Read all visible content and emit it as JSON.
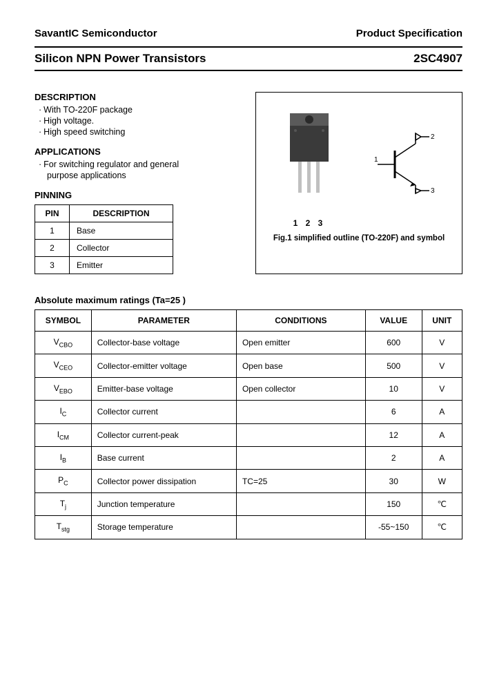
{
  "header": {
    "company": "SavantIC Semiconductor",
    "doc_type": "Product Specification"
  },
  "title": {
    "product_line": "Silicon NPN Power Transistors",
    "part_number": "2SC4907"
  },
  "description": {
    "heading": "DESCRIPTION",
    "items": [
      "With TO-220F package",
      "High voltage.",
      "High speed switching"
    ]
  },
  "applications": {
    "heading": "APPLICATIONS",
    "line1": "For switching regulator and general",
    "line2": "purpose applications"
  },
  "pinning": {
    "heading": "PINNING",
    "columns": [
      "PIN",
      "DESCRIPTION"
    ],
    "rows": [
      [
        "1",
        "Base"
      ],
      [
        "2",
        "Collector"
      ],
      [
        "3",
        "Emitter"
      ]
    ]
  },
  "figure": {
    "pin_labels": "1 2 3",
    "symbol_pins": {
      "p1": "1",
      "p2": "2",
      "p3": "3"
    },
    "caption": "Fig.1 simplified outline (TO-220F) and symbol",
    "package_color": "#5a5a5a",
    "package_dark": "#3a3a3a",
    "lead_color": "#c0c0c0"
  },
  "ratings": {
    "heading": "Absolute maximum ratings (Ta=25  )",
    "columns": [
      "SYMBOL",
      "PARAMETER",
      "CONDITIONS",
      "VALUE",
      "UNIT"
    ],
    "rows": [
      {
        "sym_main": "V",
        "sym_sub": "CBO",
        "param": "Collector-base voltage",
        "cond": "Open emitter",
        "val": "600",
        "unit": "V"
      },
      {
        "sym_main": "V",
        "sym_sub": "CEO",
        "param": "Collector-emitter voltage",
        "cond": "Open base",
        "val": "500",
        "unit": "V"
      },
      {
        "sym_main": "V",
        "sym_sub": "EBO",
        "param": "Emitter-base voltage",
        "cond": "Open collector",
        "val": "10",
        "unit": "V"
      },
      {
        "sym_main": "I",
        "sym_sub": "C",
        "param": "Collector current",
        "cond": "",
        "val": "6",
        "unit": "A"
      },
      {
        "sym_main": "I",
        "sym_sub": "CM",
        "param": "Collector current-peak",
        "cond": "",
        "val": "12",
        "unit": "A"
      },
      {
        "sym_main": "I",
        "sym_sub": "B",
        "param": "Base current",
        "cond": "",
        "val": "2",
        "unit": "A"
      },
      {
        "sym_main": "P",
        "sym_sub": "C",
        "param": "Collector power dissipation",
        "cond": "TC=25 ",
        "val": "30",
        "unit": "W"
      },
      {
        "sym_main": "T",
        "sym_sub": "j",
        "param": "Junction temperature",
        "cond": "",
        "val": "150",
        "unit": "℃"
      },
      {
        "sym_main": "T",
        "sym_sub": "stg",
        "param": "Storage temperature",
        "cond": "",
        "val": "-55~150",
        "unit": "℃"
      }
    ]
  }
}
